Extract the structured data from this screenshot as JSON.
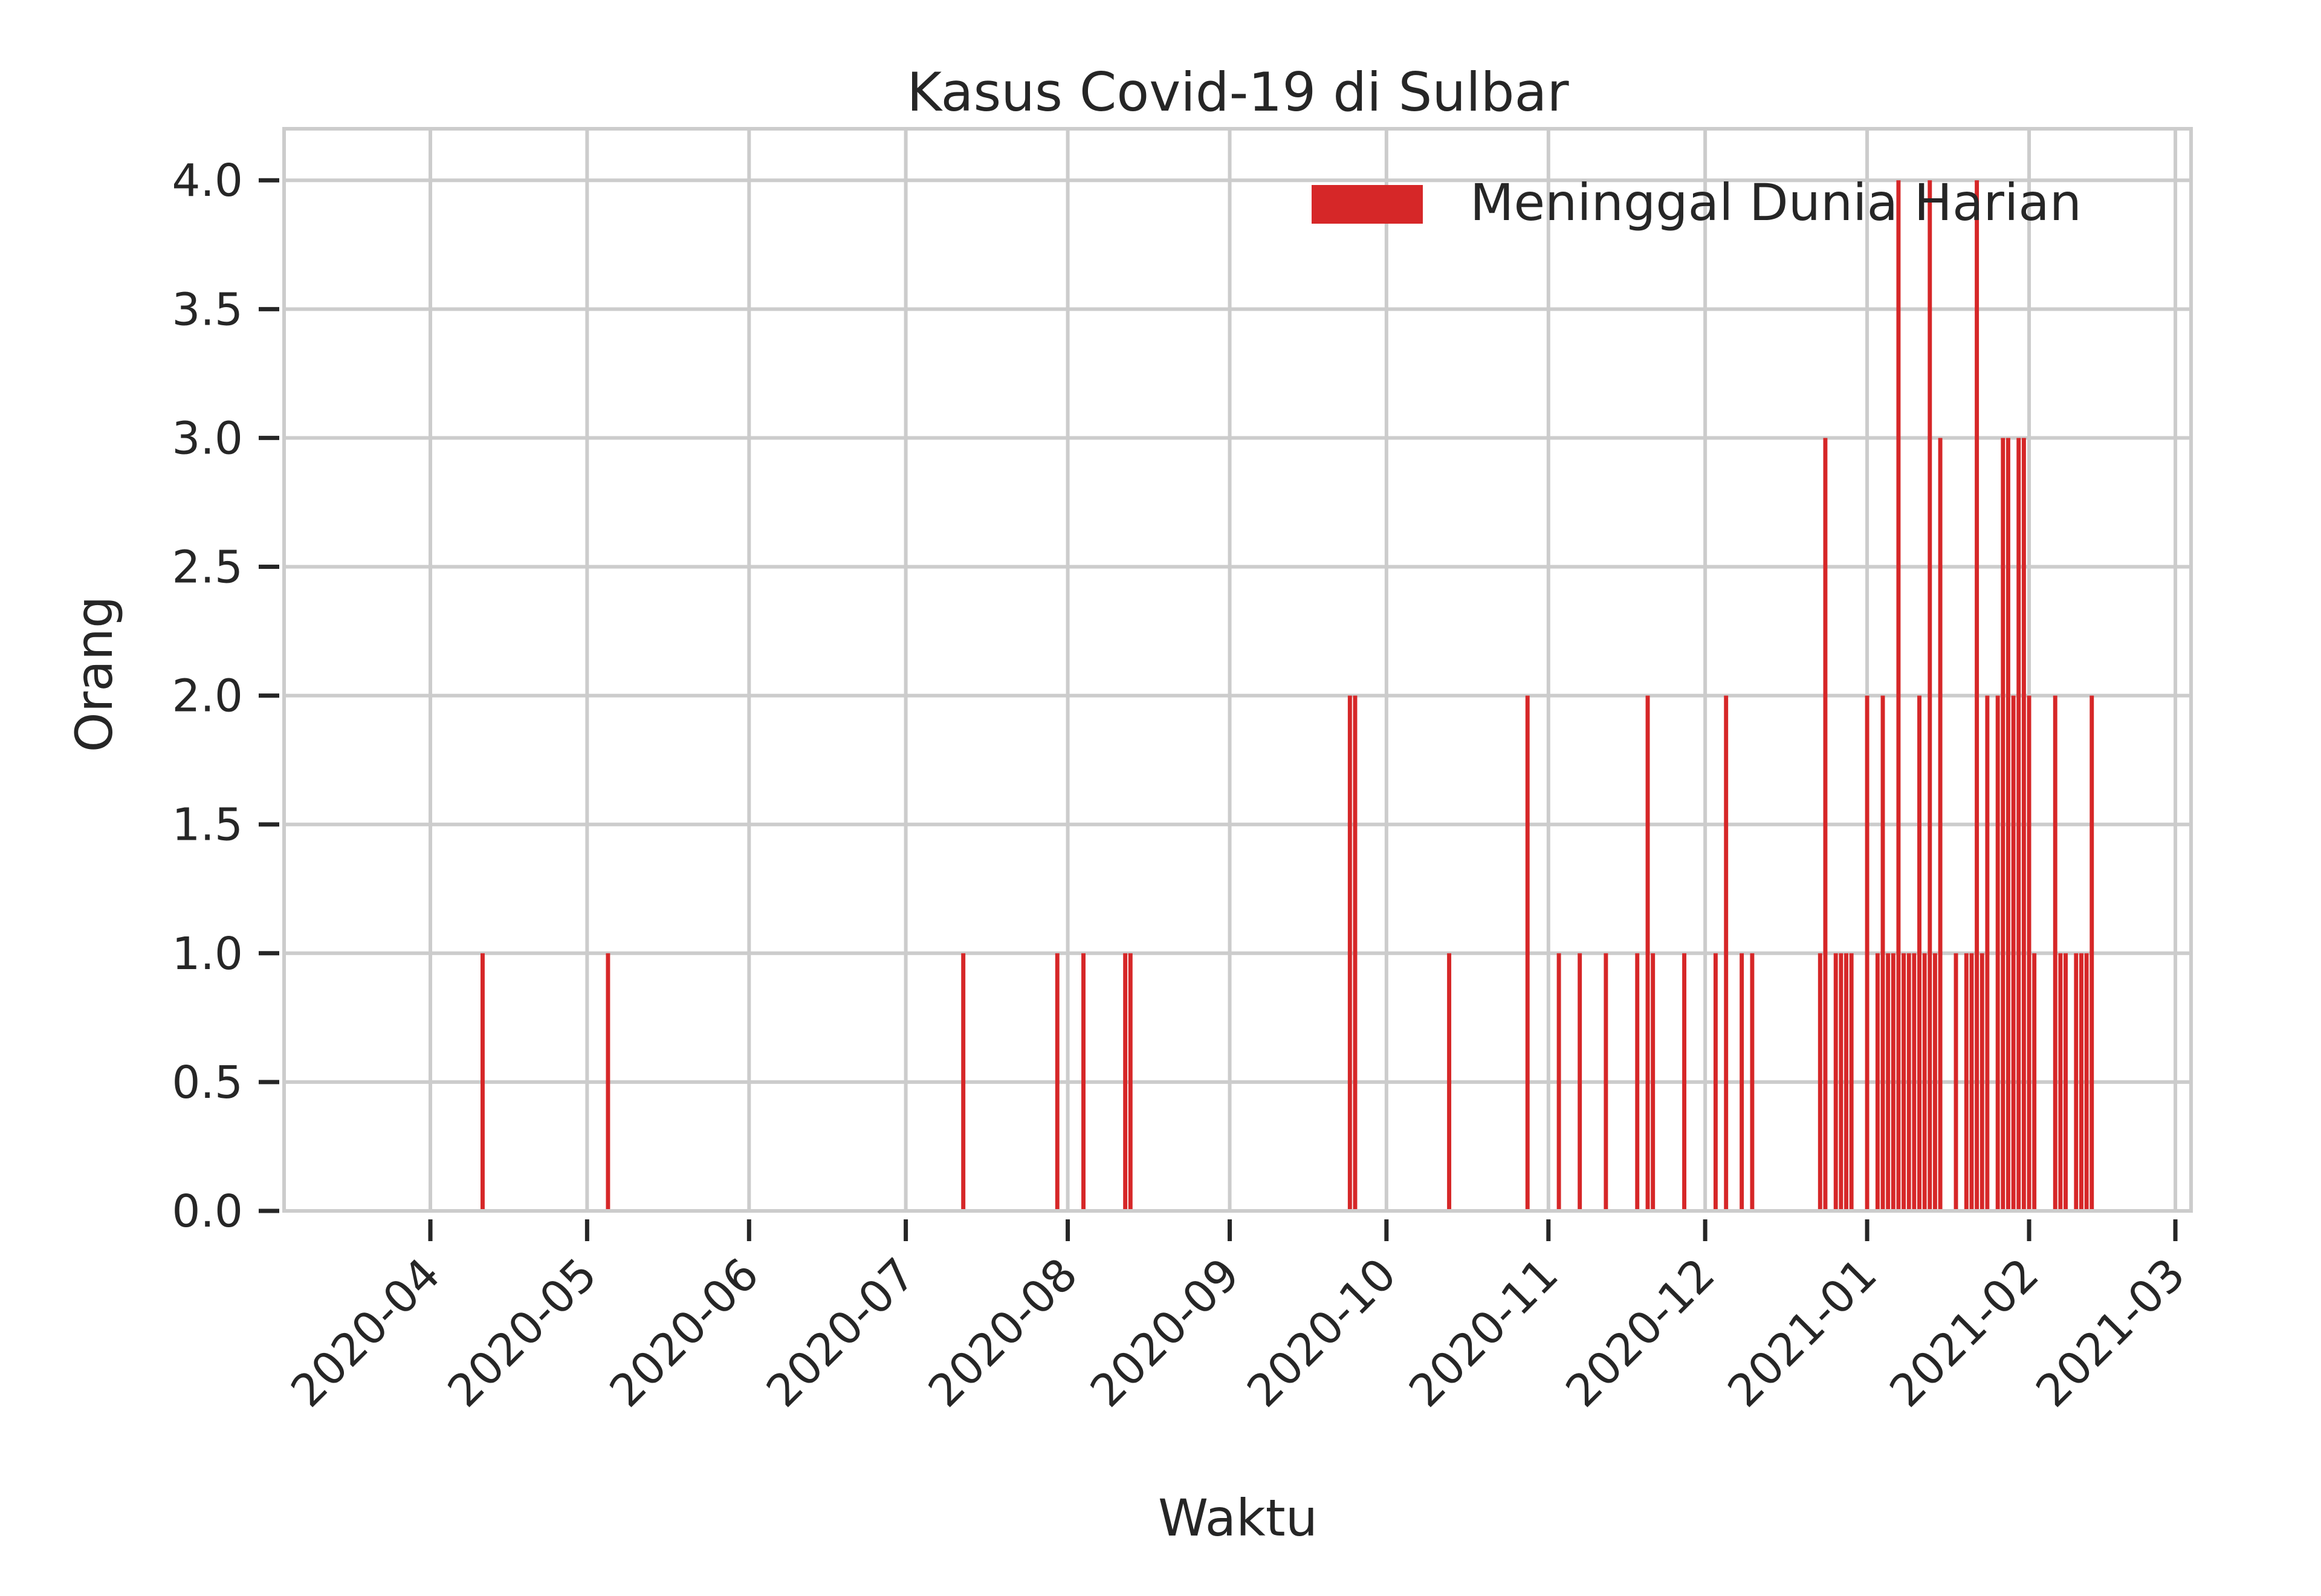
{
  "chart_data": {
    "type": "bar",
    "title": "Kasus Covid-19 di Sulbar",
    "xlabel": "Waktu",
    "ylabel": "Orang",
    "x_axis": "date",
    "xlim": [
      "2020-03-04",
      "2021-03-04"
    ],
    "ylim": [
      0,
      4.2
    ],
    "grid": true,
    "color": "#d62728",
    "legend": {
      "position": "top-right",
      "entries": [
        "Meninggal Dunia Harian"
      ]
    },
    "y_ticks": [
      "0.0",
      "0.5",
      "1.0",
      "1.5",
      "2.0",
      "2.5",
      "3.0",
      "3.5",
      "4.0"
    ],
    "y_tick_values": [
      0,
      0.5,
      1,
      1.5,
      2,
      2.5,
      3,
      3.5,
      4
    ],
    "x_ticks": [
      "2020-04",
      "2020-05",
      "2020-06",
      "2020-07",
      "2020-08",
      "2020-09",
      "2020-10",
      "2020-11",
      "2020-12",
      "2021-01",
      "2021-02",
      "2021-03"
    ],
    "x_tick_dates": [
      "2020-04-01",
      "2020-05-01",
      "2020-06-01",
      "2020-07-01",
      "2020-08-01",
      "2020-09-01",
      "2020-10-01",
      "2020-11-01",
      "2020-12-01",
      "2021-01-01",
      "2021-02-01",
      "2021-03-01"
    ],
    "series": [
      {
        "name": "Meninggal Dunia Harian",
        "points": [
          [
            "2020-04-11",
            1
          ],
          [
            "2020-05-05",
            1
          ],
          [
            "2020-07-12",
            1
          ],
          [
            "2020-07-30",
            1
          ],
          [
            "2020-08-04",
            1
          ],
          [
            "2020-08-12",
            1
          ],
          [
            "2020-08-13",
            1
          ],
          [
            "2020-09-24",
            2
          ],
          [
            "2020-09-25",
            2
          ],
          [
            "2020-10-13",
            1
          ],
          [
            "2020-10-28",
            2
          ],
          [
            "2020-11-03",
            1
          ],
          [
            "2020-11-07",
            1
          ],
          [
            "2020-11-12",
            1
          ],
          [
            "2020-11-18",
            1
          ],
          [
            "2020-11-20",
            2
          ],
          [
            "2020-11-21",
            1
          ],
          [
            "2020-11-27",
            1
          ],
          [
            "2020-12-03",
            1
          ],
          [
            "2020-12-05",
            2
          ],
          [
            "2020-12-08",
            1
          ],
          [
            "2020-12-10",
            1
          ],
          [
            "2020-12-23",
            1
          ],
          [
            "2020-12-24",
            3
          ],
          [
            "2020-12-26",
            1
          ],
          [
            "2020-12-27",
            1
          ],
          [
            "2020-12-28",
            1
          ],
          [
            "2020-12-29",
            1
          ],
          [
            "2021-01-01",
            2
          ],
          [
            "2021-01-03",
            1
          ],
          [
            "2021-01-04",
            2
          ],
          [
            "2021-01-05",
            1
          ],
          [
            "2021-01-06",
            1
          ],
          [
            "2021-01-07",
            4
          ],
          [
            "2021-01-08",
            1
          ],
          [
            "2021-01-09",
            1
          ],
          [
            "2021-01-10",
            1
          ],
          [
            "2021-01-11",
            2
          ],
          [
            "2021-01-12",
            1
          ],
          [
            "2021-01-13",
            4
          ],
          [
            "2021-01-14",
            1
          ],
          [
            "2021-01-15",
            3
          ],
          [
            "2021-01-18",
            1
          ],
          [
            "2021-01-20",
            1
          ],
          [
            "2021-01-21",
            1
          ],
          [
            "2021-01-22",
            4
          ],
          [
            "2021-01-23",
            1
          ],
          [
            "2021-01-24",
            2
          ],
          [
            "2021-01-26",
            2
          ],
          [
            "2021-01-27",
            3
          ],
          [
            "2021-01-28",
            3
          ],
          [
            "2021-01-29",
            2
          ],
          [
            "2021-01-30",
            3
          ],
          [
            "2021-01-31",
            3
          ],
          [
            "2021-02-01",
            2
          ],
          [
            "2021-02-02",
            1
          ],
          [
            "2021-02-06",
            2
          ],
          [
            "2021-02-07",
            1
          ],
          [
            "2021-02-08",
            1
          ],
          [
            "2021-02-10",
            1
          ],
          [
            "2021-02-11",
            1
          ],
          [
            "2021-02-12",
            1
          ],
          [
            "2021-02-13",
            2
          ]
        ]
      }
    ]
  }
}
